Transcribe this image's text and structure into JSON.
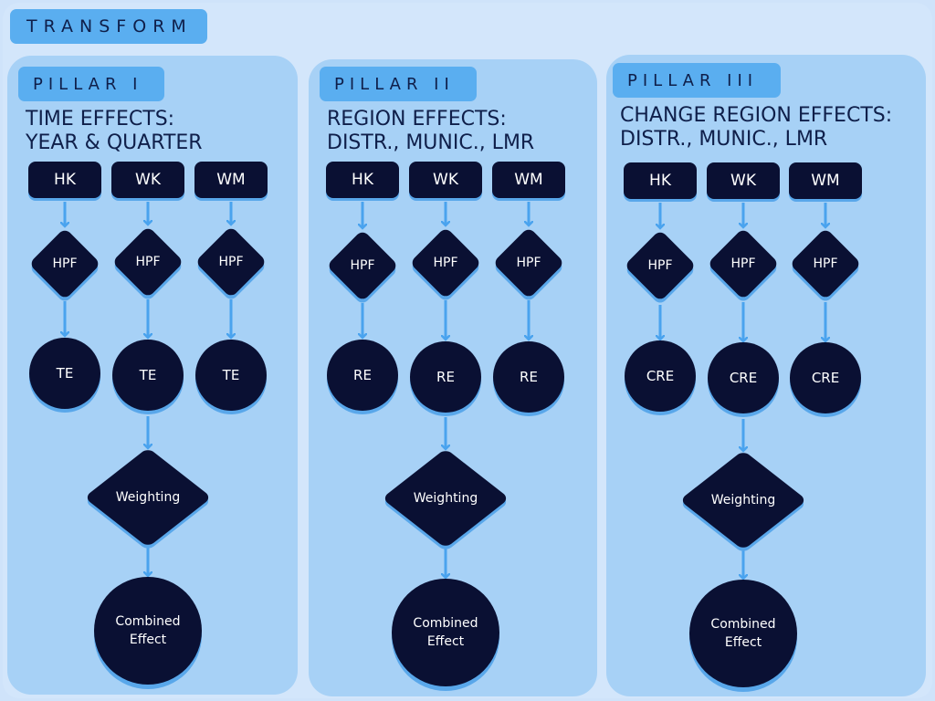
{
  "title": "TRANSFORM",
  "colors": {
    "accent": "#5aaef0",
    "panel": "#a7d1f6",
    "node": "#0a1033",
    "arrow": "#4aa3ee"
  },
  "pillars": [
    {
      "tab": "PILLAR I",
      "heading_line1": "TIME EFFECTS:",
      "heading_line2": "YEAR & QUARTER",
      "sources": [
        "HK",
        "WK",
        "WM"
      ],
      "filter": "HPF",
      "effect": "TE",
      "weighting": "Weighting",
      "combined_line1": "Combined",
      "combined_line2": "Effect"
    },
    {
      "tab": "PILLAR II",
      "heading_line1": "REGION EFFECTS:",
      "heading_line2": "DISTR., MUNIC., LMR",
      "sources": [
        "HK",
        "WK",
        "WM"
      ],
      "filter": "HPF",
      "effect": "RE",
      "weighting": "Weighting",
      "combined_line1": "Combined",
      "combined_line2": "Effect"
    },
    {
      "tab": "PILLAR III",
      "heading_line1": "CHANGE REGION EFFECTS:",
      "heading_line2": "DISTR., MUNIC., LMR",
      "sources": [
        "HK",
        "WK",
        "WM"
      ],
      "filter": "HPF",
      "effect": "CRE",
      "weighting": "Weighting",
      "combined_line1": "Combined",
      "combined_line2": "Effect"
    }
  ]
}
